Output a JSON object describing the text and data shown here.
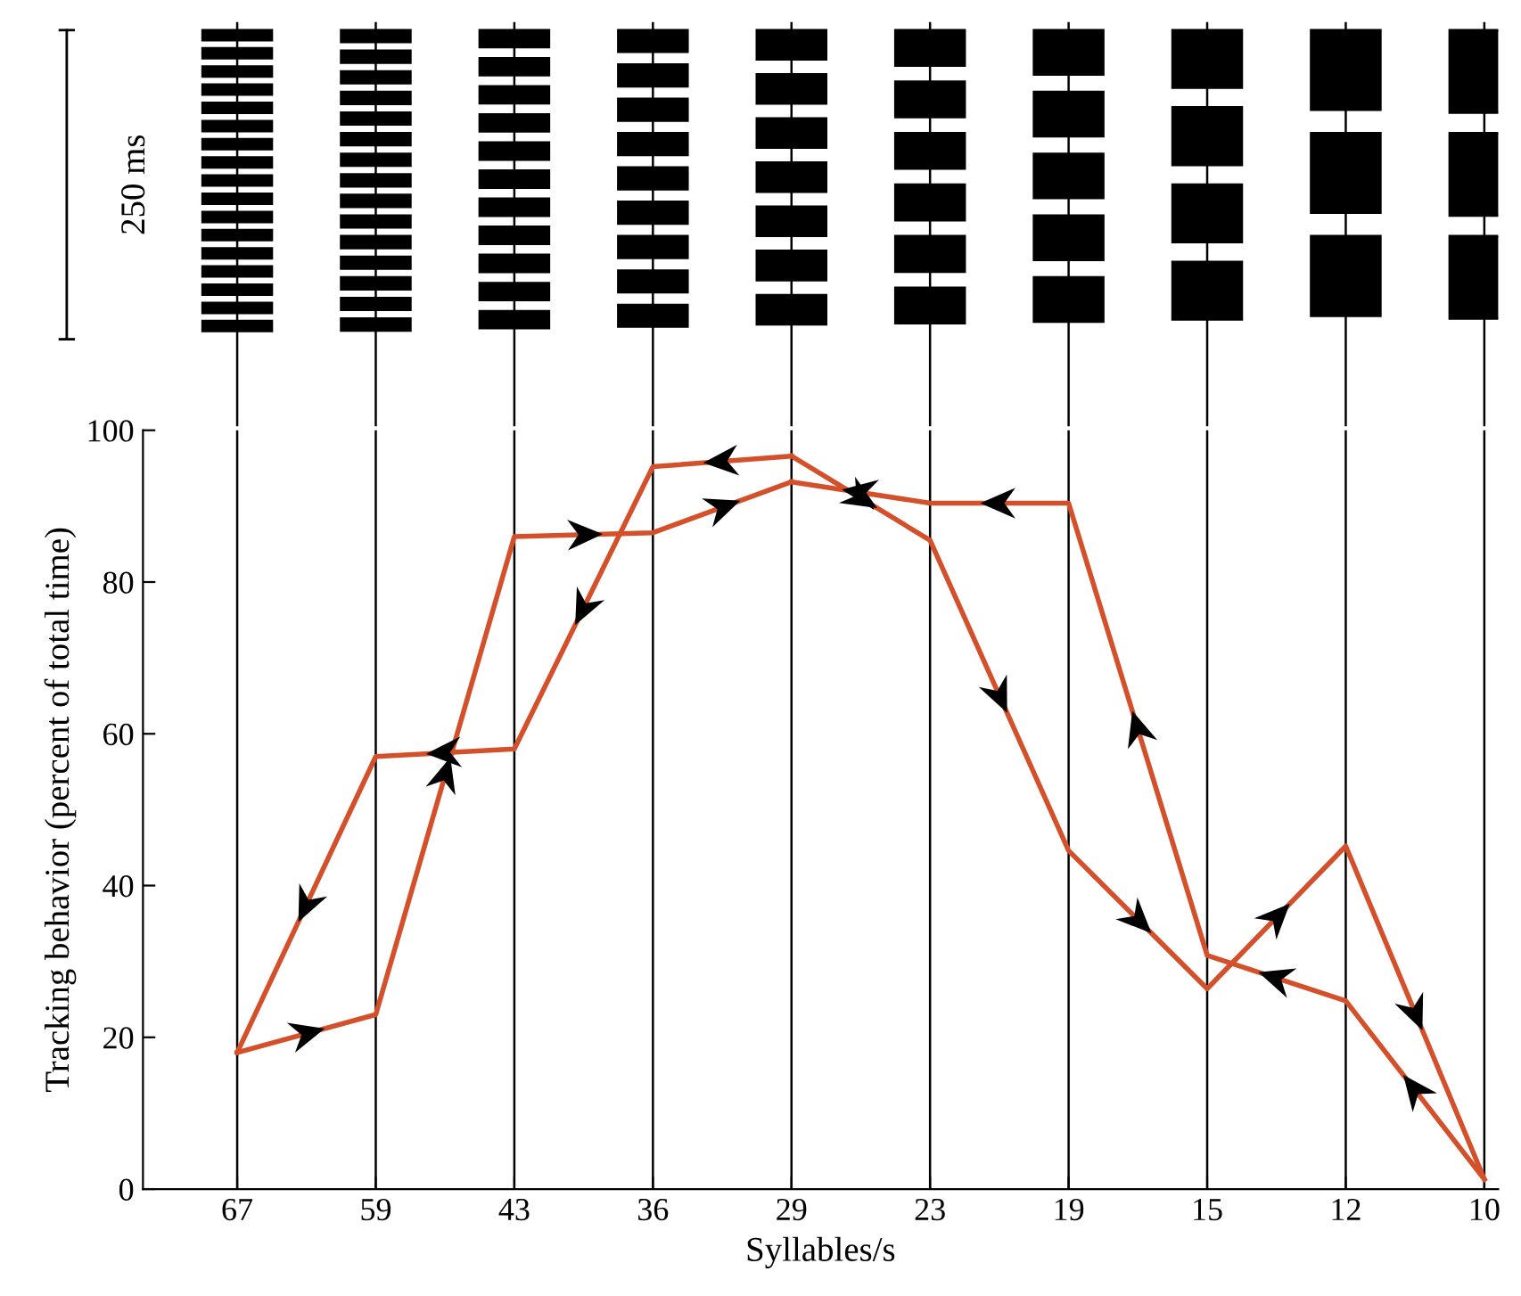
{
  "chart_data": {
    "type": "line",
    "xlabel": "Syllables/s",
    "ylabel": "Tracking behavior (percent of total time)",
    "categories": [
      "67",
      "59",
      "43",
      "36",
      "29",
      "23",
      "19",
      "15",
      "12",
      "10"
    ],
    "ylim": [
      0,
      100
    ],
    "yticks": [
      {
        "value": 0,
        "label": "0"
      },
      20,
      40,
      60,
      80,
      100
    ],
    "grid": "x",
    "legend": false,
    "marker": "none",
    "line_style": "solid",
    "annotations": [
      "250 ms"
    ],
    "series": [
      {
        "color": "#d4502a",
        "x": [
          "67",
          "59",
          "43",
          "36",
          "29"
        ],
        "values": [
          18,
          23,
          86,
          86.5,
          93.2
        ]
      },
      {
        "color": "#d4502a",
        "x": [
          "10",
          "12",
          "15",
          "19",
          "23",
          "29"
        ],
        "values": [
          1.3,
          24.8,
          30.8,
          90.4,
          90.4,
          93.2
        ]
      },
      {
        "color": "#d4502a",
        "x": [
          "29",
          "23",
          "19",
          "15",
          "12",
          "10"
        ],
        "values": [
          96.6,
          85.5,
          44.6,
          26.4,
          45.2,
          1.3
        ]
      },
      {
        "color": "#d4502a",
        "x": [
          "29",
          "36",
          "43",
          "59",
          "67"
        ],
        "values": [
          96.6,
          95.2,
          58,
          57,
          18
        ]
      }
    ]
  }
}
